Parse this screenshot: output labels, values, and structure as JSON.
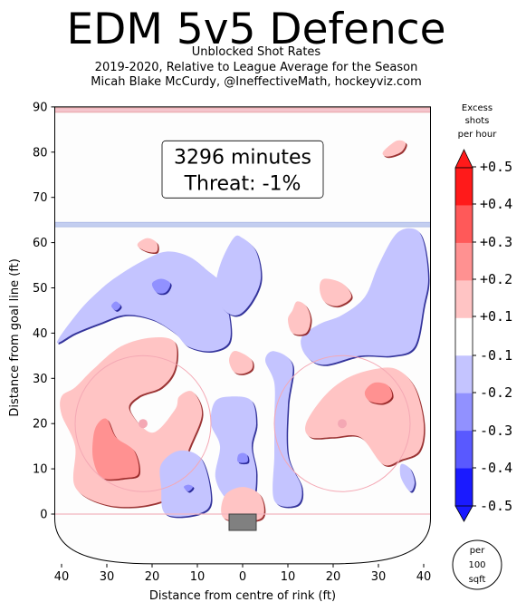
{
  "header": {
    "title": "EDM 5v5 Defence",
    "subtitle_1": "Unblocked Shot Rates",
    "subtitle_2": "2019-2020, Relative to League Average for the Season",
    "subtitle_3": "Micah Blake McCurdy, @IneffectiveMath, hockeyviz.com"
  },
  "annotation": {
    "line1": "3296 minutes",
    "line2": "Threat: -1%"
  },
  "colorbar": {
    "title_1": "Excess",
    "title_2": "shots",
    "title_3": "per hour",
    "ticks": [
      "+0.5",
      "+0.4",
      "+0.3",
      "+0.2",
      "+0.1",
      "-0.1",
      "-0.2",
      "-0.3",
      "-0.4",
      "-0.5"
    ],
    "colors": [
      "#ff1a1a",
      "#ff5959",
      "#ff9191",
      "#ffc4c4",
      "#ffffff",
      "#c4c4ff",
      "#9191ff",
      "#5959ff",
      "#1a1aff"
    ],
    "unit_1": "per",
    "unit_2": "100",
    "unit_3": "sqft"
  },
  "chart_data": {
    "type": "heatmap",
    "xlabel": "Distance from centre of rink (ft)",
    "ylabel": "Distance from goal line (ft)",
    "xlim": [
      -42,
      42
    ],
    "ylim": [
      -11,
      90
    ],
    "xticks": [
      {
        "v": -40,
        "label": "40"
      },
      {
        "v": -30,
        "label": "30"
      },
      {
        "v": -20,
        "label": "20"
      },
      {
        "v": -10,
        "label": "10"
      },
      {
        "v": 0,
        "label": "0"
      },
      {
        "v": 10,
        "label": "10"
      },
      {
        "v": 20,
        "label": "20"
      },
      {
        "v": 30,
        "label": "30"
      },
      {
        "v": 40,
        "label": "40"
      }
    ],
    "yticks": [
      0,
      10,
      20,
      30,
      40,
      50,
      60,
      70,
      80,
      90
    ],
    "colorscale": {
      "min": -0.5,
      "max": 0.5,
      "levels": [
        -0.5,
        -0.4,
        -0.3,
        -0.2,
        -0.1,
        0.1,
        0.2,
        0.3,
        0.4,
        0.5
      ]
    },
    "regions": [
      {
        "level": 0.15,
        "points": [
          [
            -37,
            28
          ],
          [
            -33,
            32
          ],
          [
            -27,
            37
          ],
          [
            -20,
            39
          ],
          [
            -15,
            38
          ],
          [
            -15,
            32
          ],
          [
            -18,
            28
          ],
          [
            -23,
            26
          ],
          [
            -25,
            23
          ],
          [
            -20,
            18
          ],
          [
            -15,
            23
          ],
          [
            -14,
            26
          ],
          [
            -11,
            27
          ],
          [
            -9,
            22
          ],
          [
            -12,
            14
          ],
          [
            -15,
            5
          ],
          [
            -21,
            2
          ],
          [
            -30,
            2
          ],
          [
            -37,
            6
          ],
          [
            -37,
            15
          ],
          [
            -40,
            22
          ],
          [
            -40,
            26
          ]
        ]
      },
      {
        "level": 0.25,
        "points": [
          [
            -32,
            20
          ],
          [
            -30,
            21
          ],
          [
            -28,
            17
          ],
          [
            -24,
            14
          ],
          [
            -23,
            9
          ],
          [
            -26,
            8
          ],
          [
            -31,
            8
          ],
          [
            -33,
            12
          ],
          [
            -33,
            17
          ]
        ]
      },
      {
        "level": 0.15,
        "points": [
          [
            14,
            20
          ],
          [
            18,
            26
          ],
          [
            23,
            30
          ],
          [
            29,
            32
          ],
          [
            34,
            32
          ],
          [
            38,
            28
          ],
          [
            40,
            20
          ],
          [
            39,
            14
          ],
          [
            35,
            12
          ],
          [
            31,
            11
          ],
          [
            26,
            17
          ],
          [
            20,
            17
          ],
          [
            15,
            17
          ]
        ]
      },
      {
        "level": 0.25,
        "points": [
          [
            27,
            27
          ],
          [
            29,
            29
          ],
          [
            32,
            28.5
          ],
          [
            33,
            26
          ],
          [
            31,
            24.5
          ],
          [
            28,
            25
          ]
        ]
      },
      {
        "level": -0.15,
        "points": [
          [
            -41,
            38
          ],
          [
            -36,
            45
          ],
          [
            -31,
            50
          ],
          [
            -27,
            53
          ],
          [
            -22,
            56
          ],
          [
            -17,
            58
          ],
          [
            -12,
            57
          ],
          [
            -8,
            54
          ],
          [
            -5,
            51
          ],
          [
            -3,
            44
          ],
          [
            -3,
            38
          ],
          [
            -7,
            36
          ],
          [
            -12,
            37
          ],
          [
            -15,
            40
          ],
          [
            -20,
            43
          ],
          [
            -26,
            44
          ],
          [
            -32,
            42
          ],
          [
            -37,
            40
          ]
        ]
      },
      {
        "level": -0.15,
        "points": [
          [
            -6,
            49
          ],
          [
            -5,
            55
          ],
          [
            -2,
            61
          ],
          [
            0,
            61
          ],
          [
            3,
            58
          ],
          [
            4,
            52
          ],
          [
            2,
            47
          ],
          [
            -1,
            44
          ],
          [
            -4,
            45
          ]
        ]
      },
      {
        "level": -0.15,
        "points": [
          [
            13,
            39
          ],
          [
            17,
            42
          ],
          [
            22,
            44
          ],
          [
            27,
            48
          ],
          [
            30,
            55
          ],
          [
            34,
            62
          ],
          [
            38,
            63
          ],
          [
            40,
            60
          ],
          [
            41,
            52
          ],
          [
            40,
            46
          ],
          [
            38,
            37
          ],
          [
            33,
            35
          ],
          [
            26,
            35
          ],
          [
            18,
            33
          ],
          [
            14,
            35
          ]
        ]
      },
      {
        "level": -0.15,
        "points": [
          [
            -6,
            25
          ],
          [
            -2,
            26
          ],
          [
            2,
            25
          ],
          [
            3,
            20
          ],
          [
            2,
            15
          ],
          [
            3,
            9
          ],
          [
            2,
            3
          ],
          [
            -3,
            3
          ],
          [
            -6,
            8
          ],
          [
            -5,
            15
          ],
          [
            -7,
            20
          ]
        ]
      },
      {
        "level": -0.15,
        "points": [
          [
            13,
            6
          ],
          [
            10,
            13
          ],
          [
            10,
            24
          ],
          [
            11,
            33
          ],
          [
            7,
            36
          ],
          [
            5,
            34
          ],
          [
            7,
            29
          ],
          [
            7,
            21
          ],
          [
            7,
            13
          ],
          [
            7,
            3
          ],
          [
            12,
            2
          ]
        ]
      },
      {
        "level": -0.15,
        "points": [
          [
            -18,
            6
          ],
          [
            -18,
            11
          ],
          [
            -14,
            14
          ],
          [
            -9,
            12
          ],
          [
            -7,
            3
          ],
          [
            -10,
            0
          ],
          [
            -17,
            0
          ]
        ]
      },
      {
        "level": -0.15,
        "points": [
          [
            35,
            8
          ],
          [
            35,
            11
          ],
          [
            37,
            10
          ],
          [
            38,
            7
          ],
          [
            37,
            5
          ]
        ]
      },
      {
        "level": 0.15,
        "points": [
          [
            11,
            45
          ],
          [
            12,
            47
          ],
          [
            14,
            46
          ],
          [
            15,
            43
          ],
          [
            14,
            40
          ],
          [
            11,
            40
          ],
          [
            10,
            43
          ]
        ]
      },
      {
        "level": 0.15,
        "points": [
          [
            -2,
            36
          ],
          [
            0,
            35.5
          ],
          [
            2,
            34
          ],
          [
            2,
            32
          ],
          [
            0,
            31
          ],
          [
            -2,
            31.5
          ],
          [
            -3,
            34
          ]
        ]
      },
      {
        "level": 0.15,
        "points": [
          [
            18,
            52
          ],
          [
            22,
            51
          ],
          [
            24,
            48
          ],
          [
            21,
            46
          ],
          [
            18,
            47
          ],
          [
            17,
            50
          ]
        ]
      },
      {
        "level": 0.15,
        "points": [
          [
            -23,
            60
          ],
          [
            -21,
            61
          ],
          [
            -19,
            60
          ],
          [
            -19,
            58
          ],
          [
            -21,
            58
          ],
          [
            -23,
            59
          ]
        ]
      },
      {
        "level": 0.15,
        "points": [
          [
            31,
            80
          ],
          [
            34,
            82.5
          ],
          [
            36,
            82
          ],
          [
            35,
            80
          ],
          [
            32,
            79
          ]
        ]
      },
      {
        "level": 0.15,
        "points": [
          [
            -4,
            4
          ],
          [
            0,
            6
          ],
          [
            4,
            4
          ],
          [
            4,
            -1
          ],
          [
            -4,
            -1
          ]
        ]
      },
      {
        "level": -0.25,
        "points": [
          [
            -20,
            51
          ],
          [
            -18,
            52
          ],
          [
            -16,
            51
          ],
          [
            -17,
            49
          ],
          [
            -19,
            49
          ]
        ]
      },
      {
        "level": -0.25,
        "points": [
          [
            -29,
            46
          ],
          [
            -28,
            47
          ],
          [
            -27,
            46
          ],
          [
            -28,
            45
          ]
        ]
      },
      {
        "level": -0.25,
        "points": [
          [
            -1,
            13
          ],
          [
            0,
            13.5
          ],
          [
            1,
            13
          ],
          [
            1,
            11.5
          ],
          [
            -1,
            11.5
          ]
        ]
      },
      {
        "level": -0.25,
        "points": [
          [
            -13,
            6
          ],
          [
            -12,
            6.5
          ],
          [
            -11,
            6
          ],
          [
            -12,
            5
          ]
        ]
      }
    ],
    "faceoff_circles": [
      {
        "x": -22,
        "y": 20,
        "r": 15
      },
      {
        "x": 22,
        "y": 20,
        "r": 15
      }
    ],
    "faceoff_dots": [
      {
        "x": -22,
        "y": 20
      },
      {
        "x": 22,
        "y": 20
      }
    ],
    "goal_line_y": 0,
    "blue_line_y": 64,
    "red_line_y": 89
  }
}
